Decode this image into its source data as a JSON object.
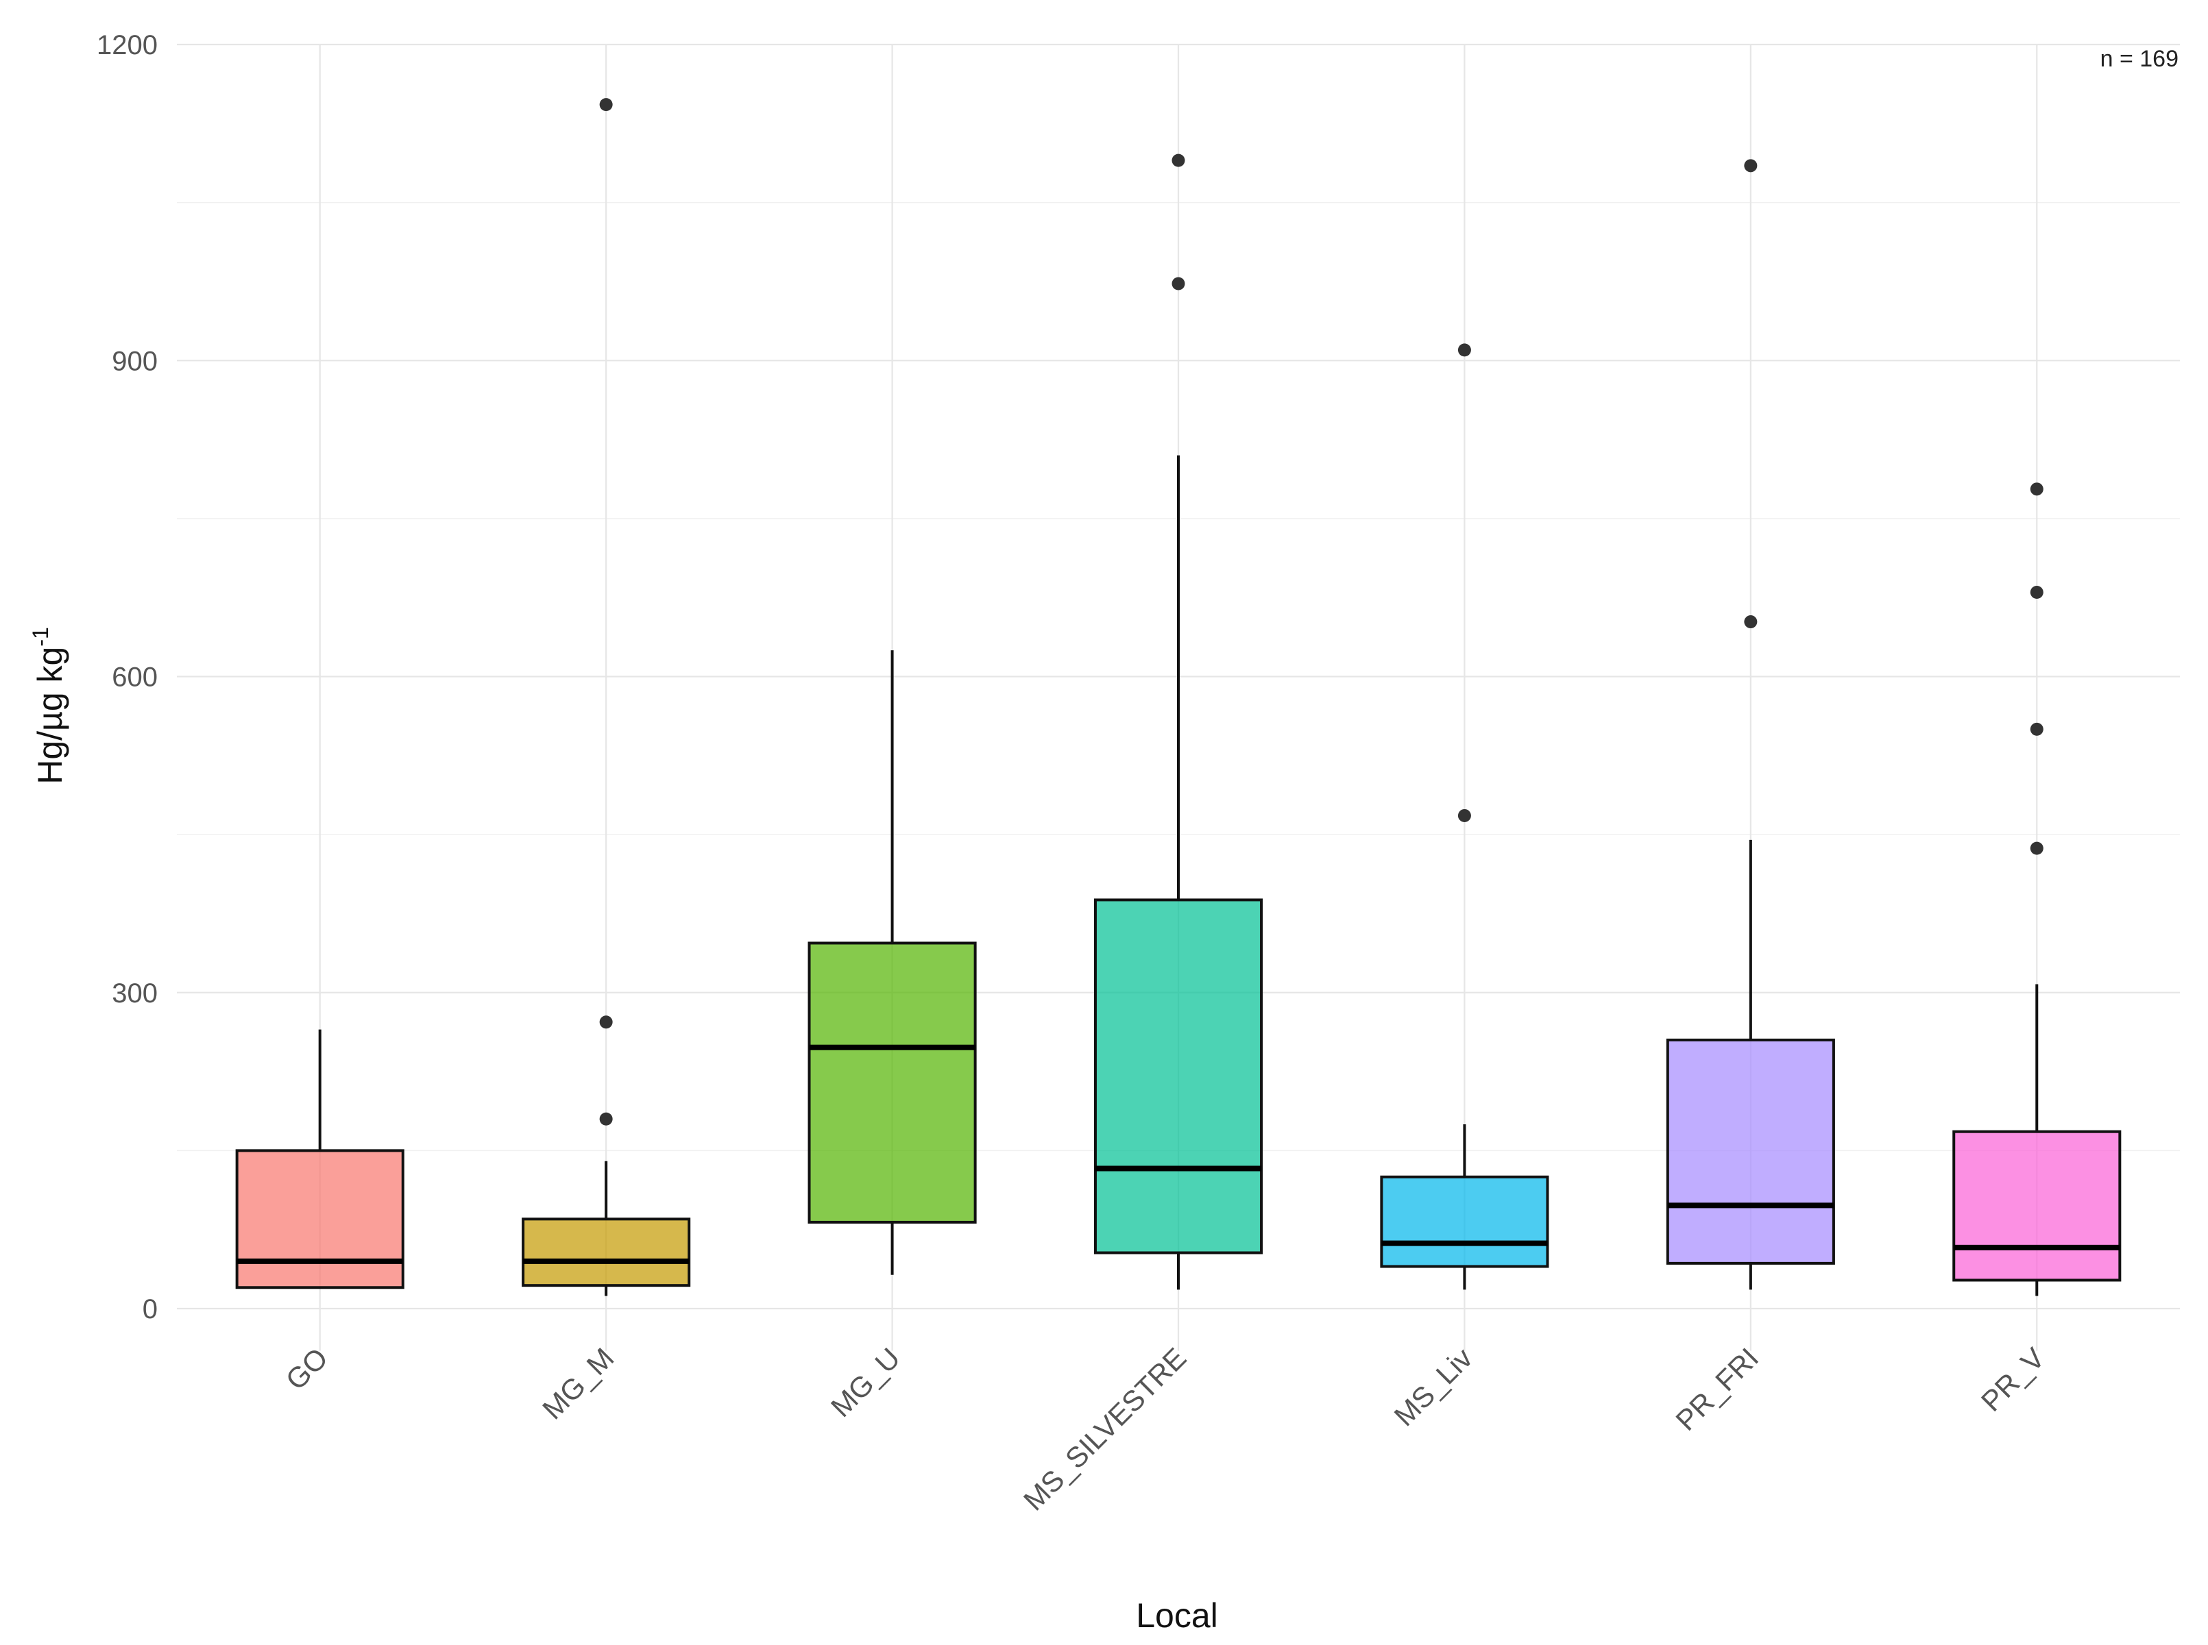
{
  "chart_data": {
    "type": "boxplot",
    "title": "",
    "xlabel": "Local",
    "ylabel": "Hg/µg kg",
    "ylabel_superscript": "-1",
    "annotation": "n = 169",
    "ylim": [
      -40,
      1200
    ],
    "yticks": [
      0,
      300,
      600,
      900,
      1200
    ],
    "yminor": [
      150,
      450,
      750,
      1050
    ],
    "grid": true,
    "legend": "none",
    "categories": [
      "GO",
      "MG_M",
      "MG_U",
      "MS_SILVESTRE",
      "MS_Liv",
      "PR_FRI",
      "PR_V"
    ],
    "boxes": [
      {
        "name": "GO",
        "color": "#F8766D",
        "whisker_low": 20,
        "q1": 20,
        "median": 45,
        "q3": 150,
        "whisker_high": 265,
        "outliers": []
      },
      {
        "name": "MG_M",
        "color": "#C49A00",
        "whisker_low": 12,
        "q1": 22,
        "median": 45,
        "q3": 85,
        "whisker_high": 140,
        "outliers": [
          180,
          272,
          1143
        ]
      },
      {
        "name": "MG_U",
        "color": "#53B400",
        "whisker_low": 32,
        "q1": 82,
        "median": 248,
        "q3": 347,
        "whisker_high": 625,
        "outliers": []
      },
      {
        "name": "MS_SILVESTRE",
        "color": "#00C094",
        "whisker_low": 18,
        "q1": 53,
        "median": 133,
        "q3": 388,
        "whisker_high": 810,
        "outliers": [
          973,
          1090
        ]
      },
      {
        "name": "MS_Liv",
        "color": "#00B6EB",
        "whisker_low": 18,
        "q1": 40,
        "median": 62,
        "q3": 125,
        "whisker_high": 175,
        "outliers": [
          468,
          910
        ]
      },
      {
        "name": "PR_FRI",
        "color": "#A58AFF",
        "whisker_low": 18,
        "q1": 43,
        "median": 98,
        "q3": 255,
        "whisker_high": 445,
        "outliers": [
          652,
          1085
        ]
      },
      {
        "name": "PR_V",
        "color": "#FB61D7",
        "whisker_low": 12,
        "q1": 27,
        "median": 58,
        "q3": 168,
        "whisker_high": 308,
        "outliers": [
          437,
          550,
          680,
          778
        ]
      }
    ]
  }
}
